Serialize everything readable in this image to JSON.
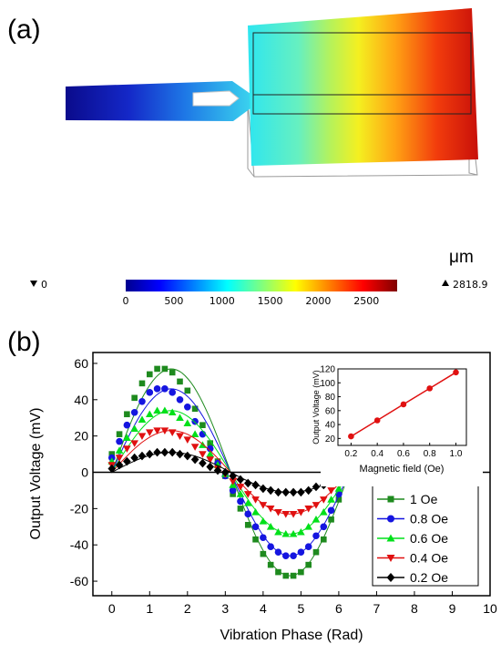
{
  "panel_a": {
    "label": "(a)",
    "unit": "μm",
    "min_label": "0",
    "max_label": "2818.9",
    "colorbar_ticks": [
      "0",
      "500",
      "1000",
      "1500",
      "2000",
      "2500"
    ],
    "colorbar_range": [
      0,
      2818.9
    ]
  },
  "panel_b": {
    "label": "(b)"
  },
  "chart_data": [
    {
      "type": "scatter",
      "xlabel": "Vibration Phase (Rad)",
      "ylabel": "Output Voltage (mV)",
      "xlim": [
        -0.5,
        10
      ],
      "ylim": [
        -68,
        66
      ],
      "xticks": [
        "0",
        "1",
        "2",
        "3",
        "4",
        "5",
        "6",
        "7",
        "8",
        "9",
        "10"
      ],
      "yticks": [
        "-60",
        "-40",
        "-20",
        "0",
        "20",
        "40",
        "60"
      ],
      "legend_position": "lower-right",
      "x": [
        0,
        0.2,
        0.4,
        0.6,
        0.8,
        1.0,
        1.2,
        1.4,
        1.6,
        1.8,
        2.0,
        2.2,
        2.4,
        2.6,
        2.8,
        3.0,
        3.2,
        3.4,
        3.6,
        3.8,
        4.0,
        4.2,
        4.4,
        4.6,
        4.8,
        5.0,
        5.2,
        5.4,
        5.6,
        5.8,
        6.0,
        6.2
      ],
      "series": [
        {
          "name": "1 Oe",
          "color": "#1e8a1e",
          "marker": "square",
          "amplitude": 57,
          "values": [
            10,
            21,
            32,
            41,
            49,
            54,
            57,
            57,
            55,
            50,
            45,
            35,
            26,
            16,
            6,
            -2,
            -12,
            -20,
            -29,
            -37,
            -45,
            -51,
            -55,
            -57,
            -57,
            -55,
            -51,
            -44,
            -37,
            -26,
            -15,
            -5
          ]
        },
        {
          "name": "0.8 Oe",
          "color": "#1515e0",
          "marker": "circle",
          "amplitude": 46,
          "values": [
            8,
            17,
            26,
            33,
            39,
            44,
            46,
            46,
            44,
            40,
            36,
            28,
            21,
            13,
            5,
            -2,
            -10,
            -16,
            -23,
            -30,
            -36,
            -41,
            -44,
            -46,
            -46,
            -44,
            -41,
            -35,
            -30,
            -21,
            -12,
            -4
          ]
        },
        {
          "name": "0.6 Oe",
          "color": "#00e01a",
          "marker": "triangle-up",
          "amplitude": 34,
          "values": [
            6,
            12,
            19,
            24,
            29,
            32,
            34,
            34,
            33,
            30,
            27,
            21,
            15,
            10,
            4,
            -1,
            -7,
            -12,
            -17,
            -22,
            -27,
            -30,
            -33,
            -34,
            -34,
            -33,
            -30,
            -26,
            -22,
            -15,
            -9,
            -3
          ]
        },
        {
          "name": "0.4 Oe",
          "color": "#e01010",
          "marker": "triangle-down",
          "amplitude": 23,
          "values": [
            4,
            8,
            13,
            16,
            20,
            22,
            23,
            23,
            22,
            20,
            18,
            14,
            10,
            7,
            2,
            -1,
            -5,
            -8,
            -12,
            -15,
            -18,
            -20,
            -22,
            -23,
            -23,
            -22,
            -20,
            -18,
            -15,
            -10,
            -6,
            -2
          ]
        },
        {
          "name": "0.2 Oe",
          "color": "#000000",
          "marker": "diamond",
          "amplitude": 11,
          "values": [
            2,
            4,
            6,
            8,
            9,
            10,
            11,
            11,
            11,
            10,
            9,
            7,
            5,
            3,
            1,
            0,
            -2,
            -4,
            -6,
            -7,
            -9,
            -10,
            -11,
            -11,
            -11,
            -11,
            -10,
            -8,
            -7,
            -5,
            -3,
            -1
          ]
        }
      ]
    },
    {
      "type": "line",
      "role": "inset",
      "xlabel": "Magnetic field (Oe)",
      "ylabel": "Output Voltage (mV)",
      "xlim": [
        0.1,
        1.08
      ],
      "ylim": [
        10,
        120
      ],
      "xticks": [
        "0.2",
        "0.4",
        "0.6",
        "0.8",
        "1.0"
      ],
      "yticks": [
        "20",
        "40",
        "60",
        "80",
        "100",
        "120"
      ],
      "x": [
        0.2,
        0.4,
        0.6,
        0.8,
        1.0
      ],
      "values": [
        23,
        46,
        69,
        92,
        115
      ],
      "color": "#e01010"
    }
  ]
}
